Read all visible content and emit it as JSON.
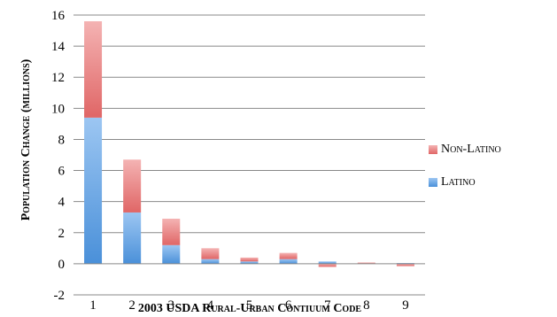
{
  "chart_data": {
    "type": "bar",
    "stacked": true,
    "categories": [
      "1",
      "2",
      "3",
      "4",
      "5",
      "6",
      "7",
      "8",
      "9"
    ],
    "series": [
      {
        "name": "Latino",
        "color": "#4a90d9",
        "values": [
          9.4,
          3.3,
          1.2,
          0.3,
          0.15,
          0.3,
          0.15,
          0.03,
          0.05
        ]
      },
      {
        "name": "Non-Latino",
        "color": "#e06666",
        "values": [
          6.2,
          3.4,
          1.7,
          0.7,
          0.25,
          0.4,
          -0.2,
          0.05,
          -0.15
        ]
      }
    ],
    "xlabel": "2003 USDA Rural-Urban Contiuum Code",
    "ylabel": "Population Change (millions)",
    "ylim": [
      -2,
      16
    ],
    "yticks": [
      "-2",
      "0",
      "2",
      "4",
      "6",
      "8",
      "10",
      "12",
      "14",
      "16"
    ],
    "grid": true,
    "legend": "right"
  }
}
